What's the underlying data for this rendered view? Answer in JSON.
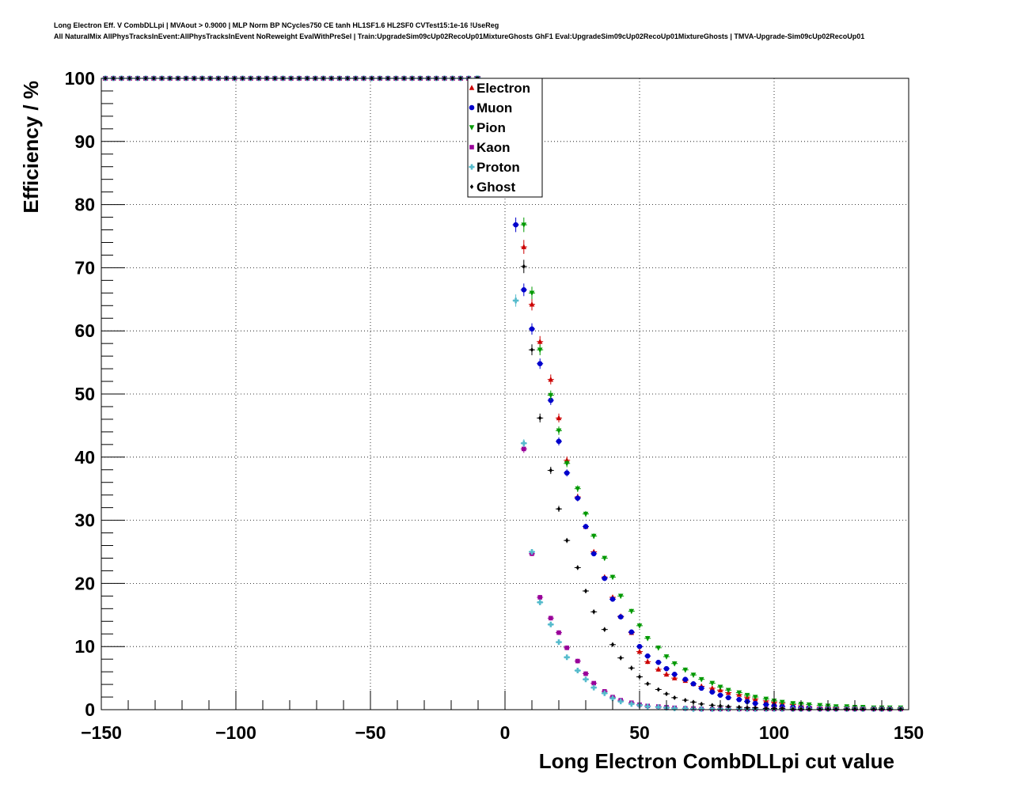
{
  "header": {
    "line1": "Long Electron Eff. V CombDLLpi | MVAout > 0.9000 | MLP Norm BP NCycles750 CE tanh HL1SF1.6 HL2SF0 CVTest15:1e-16 !UseReg",
    "line2": "All NaturalMix AllPhysTracksInEvent:AllPhysTracksInEvent NoReweight EvalWithPreSel | Train:UpgradeSim09cUp02RecoUp01MixtureGhosts GhF1 Eval:UpgradeSim09cUp02RecoUp01MixtureGhosts | TMVA-Upgrade-Sim09cUp02RecoUp01"
  },
  "chart_data": {
    "type": "scatter",
    "title": "",
    "xlabel": "Long Electron CombDLLpi cut value",
    "ylabel": "Efficiency / %",
    "xlim": [
      -150,
      150
    ],
    "ylim": [
      0,
      100
    ],
    "xticks": [
      "−150",
      "−100",
      "−50",
      "0",
      "50",
      "100",
      "150"
    ],
    "yticks": [
      "0",
      "10",
      "20",
      "30",
      "40",
      "50",
      "60",
      "70",
      "80",
      "90",
      "100"
    ],
    "grid": true,
    "legend_position": "top-center",
    "series": [
      {
        "name": "Electron",
        "color": "#cc0000",
        "marker": "triangle-up",
        "x": [
          -10,
          7,
          10,
          13,
          17,
          20,
          23,
          27,
          30,
          33,
          37,
          40,
          43,
          47,
          50,
          53,
          57,
          60,
          63,
          67,
          70,
          73,
          77,
          80,
          83,
          87,
          90,
          93,
          97,
          100,
          103,
          107,
          110,
          113,
          117,
          120,
          123,
          127,
          130,
          133,
          137,
          140,
          143,
          147
        ],
        "y": [
          100,
          73.3,
          64.2,
          58.3,
          52.3,
          46.2,
          39.5,
          33.7,
          29.0,
          25.0,
          21.0,
          17.8,
          14.8,
          12.2,
          9.2,
          7.6,
          6.4,
          5.6,
          5.0,
          4.6,
          4.1,
          3.7,
          3.4,
          3.1,
          2.7,
          2.4,
          2.0,
          1.7,
          1.4,
          1.2,
          1.0,
          0.8,
          0.6,
          0.5,
          0.4,
          0.3,
          0.3,
          0.2,
          0.2,
          0.2,
          0.2,
          0.1,
          0.1,
          0.1
        ]
      },
      {
        "name": "Muon",
        "color": "#0000cc",
        "marker": "circle",
        "x": [
          -10,
          4,
          7,
          10,
          13,
          17,
          20,
          23,
          27,
          30,
          33,
          37,
          40,
          43,
          47,
          50,
          53,
          57,
          60,
          63,
          67,
          70,
          73,
          77,
          80,
          83,
          87,
          90,
          93,
          97,
          100,
          103,
          107,
          110,
          113,
          117,
          120,
          123,
          127,
          130,
          133,
          137,
          140,
          143,
          147
        ],
        "y": [
          100,
          76.8,
          66.5,
          60.3,
          54.8,
          49.0,
          42.5,
          37.5,
          33.5,
          29.0,
          24.7,
          20.8,
          17.5,
          14.7,
          12.3,
          10.0,
          8.5,
          7.5,
          6.5,
          5.6,
          4.8,
          4.1,
          3.4,
          2.8,
          2.3,
          1.9,
          1.6,
          1.3,
          1.0,
          0.8,
          0.6,
          0.5,
          0.4,
          0.3,
          0.3,
          0.2,
          0.2,
          0.1,
          0.1,
          0.1,
          0.1,
          0.1,
          0.1,
          0.1,
          0.1
        ]
      },
      {
        "name": "Pion",
        "color": "#009900",
        "marker": "triangle-down",
        "x": [
          -10,
          7,
          10,
          13,
          17,
          20,
          23,
          27,
          30,
          33,
          37,
          40,
          43,
          47,
          50,
          53,
          57,
          60,
          63,
          67,
          70,
          73,
          77,
          80,
          83,
          87,
          90,
          93,
          97,
          100,
          103,
          107,
          110,
          113,
          117,
          120,
          123,
          127,
          130,
          133,
          137,
          140,
          143,
          147
        ],
        "y": [
          100,
          76.8,
          66.0,
          57.0,
          49.8,
          44.2,
          39.0,
          35.0,
          31.0,
          27.5,
          24.0,
          21.0,
          18.0,
          15.6,
          13.3,
          11.3,
          9.8,
          8.4,
          7.3,
          6.3,
          5.5,
          4.8,
          4.2,
          3.6,
          3.1,
          2.7,
          2.3,
          2.0,
          1.7,
          1.4,
          1.2,
          1.0,
          0.9,
          0.8,
          0.7,
          0.6,
          0.5,
          0.5,
          0.4,
          0.4,
          0.3,
          0.3,
          0.3,
          0.3
        ]
      },
      {
        "name": "Kaon",
        "color": "#990099",
        "marker": "square",
        "x": [
          -10,
          7,
          10,
          13,
          17,
          20,
          23,
          27,
          30,
          33,
          37,
          40,
          43,
          47,
          50,
          53,
          57,
          60,
          63,
          67,
          70,
          73,
          77,
          80,
          83,
          87,
          90,
          93,
          97,
          100,
          103,
          107,
          110,
          113,
          117,
          120,
          123,
          127,
          130,
          133,
          137,
          140,
          143,
          147
        ],
        "y": [
          100,
          41.3,
          24.7,
          17.8,
          14.5,
          12.2,
          9.8,
          7.7,
          5.7,
          4.2,
          2.9,
          2.0,
          1.5,
          1.1,
          0.8,
          0.6,
          0.5,
          0.4,
          0.3,
          0.2,
          0.2,
          0.1,
          0.1,
          0.1,
          0.1,
          0.1,
          0.1,
          0.1,
          0.1,
          0.1,
          0.1,
          0.1,
          0.1,
          0.1,
          0.1,
          0.1,
          0.1,
          0.1,
          0.1,
          0.1,
          0.1,
          0.1,
          0.1,
          0.1
        ]
      },
      {
        "name": "Proton",
        "color": "#55bbcc",
        "marker": "cross",
        "x": [
          -10,
          4,
          7,
          10,
          13,
          17,
          20,
          23,
          27,
          30,
          33,
          37,
          40,
          43,
          47,
          50,
          53,
          57,
          60,
          63,
          67,
          70,
          73,
          77,
          80,
          83,
          87,
          90,
          93,
          97,
          100,
          103,
          107,
          110,
          113,
          117,
          120,
          123,
          127,
          130,
          133,
          137,
          140,
          143,
          147
        ],
        "y": [
          100,
          64.8,
          42.2,
          25.0,
          17.0,
          13.5,
          10.7,
          8.3,
          6.2,
          4.8,
          3.5,
          2.6,
          1.8,
          1.3,
          0.9,
          0.7,
          0.5,
          0.4,
          0.3,
          0.2,
          0.2,
          0.1,
          0.1,
          0.1,
          0.1,
          0.1,
          0.1,
          0.1,
          0.1,
          0.1,
          0.1,
          0.1,
          0.1,
          0.1,
          0.1,
          0.1,
          0.1,
          0.1,
          0.1,
          0.1,
          0.1,
          0.1,
          0.1,
          0.1,
          0.1
        ]
      },
      {
        "name": "Ghost",
        "color": "#000000",
        "marker": "diamond",
        "x": [
          -10,
          7,
          10,
          13,
          17,
          20,
          23,
          27,
          30,
          33,
          37,
          40,
          43,
          47,
          50,
          53,
          57,
          60,
          63,
          67,
          70,
          73,
          77,
          80,
          83,
          87,
          90,
          93,
          97,
          100,
          103,
          107,
          110,
          113,
          117,
          120,
          123,
          127,
          130,
          133,
          137,
          140,
          143,
          147
        ],
        "y": [
          100,
          70.2,
          57.0,
          46.2,
          37.9,
          31.8,
          26.8,
          22.5,
          18.8,
          15.5,
          12.7,
          10.3,
          8.2,
          6.6,
          5.2,
          4.1,
          3.2,
          2.5,
          1.9,
          1.5,
          1.2,
          0.9,
          0.7,
          0.6,
          0.5,
          0.4,
          0.3,
          0.3,
          0.2,
          0.2,
          0.2,
          0.1,
          0.1,
          0.1,
          0.1,
          0.1,
          0.1,
          0.1,
          0.1,
          0.1,
          0.1,
          0.1,
          0.1,
          0.1
        ]
      }
    ]
  }
}
